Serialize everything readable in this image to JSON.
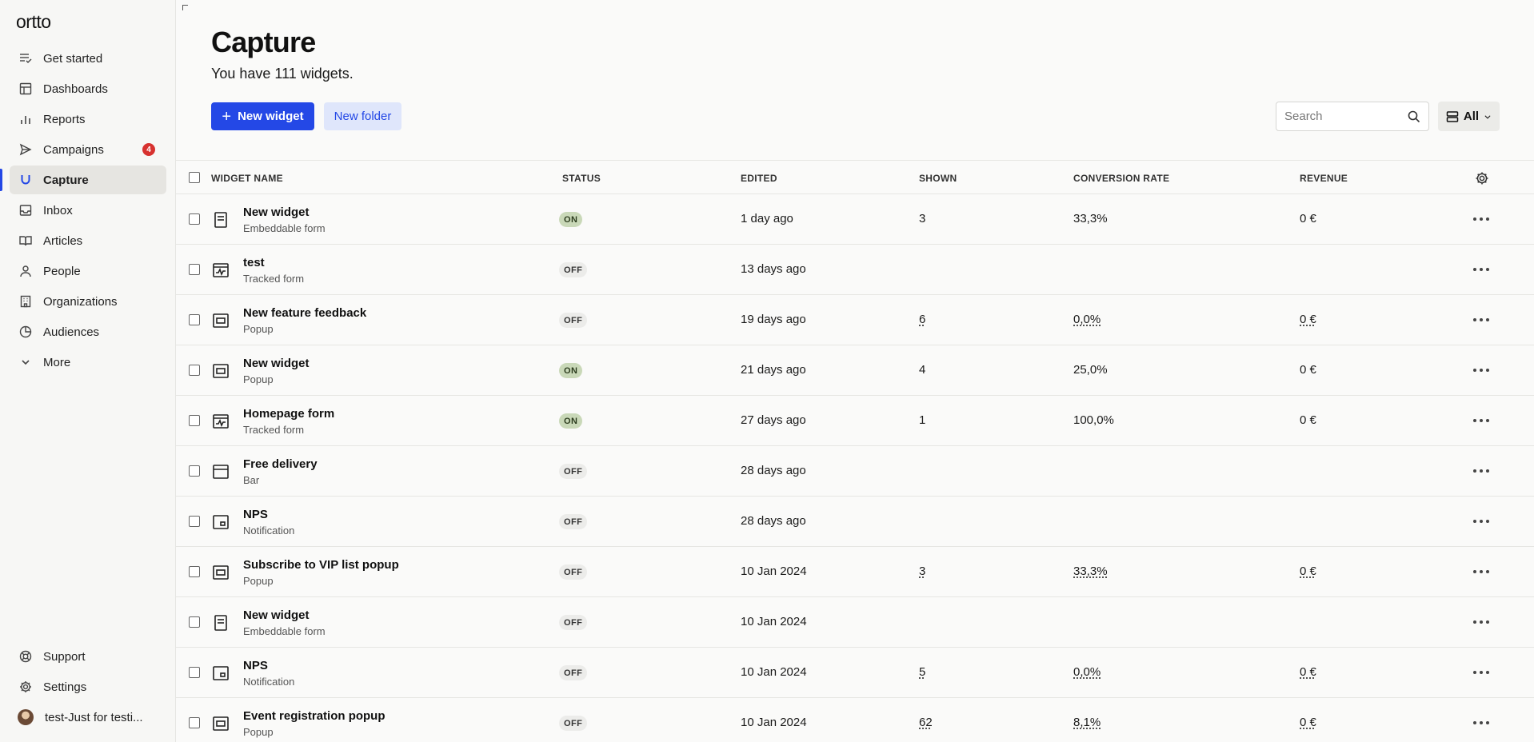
{
  "app": {
    "logo": "ortto"
  },
  "sidebar": {
    "items": [
      {
        "label": "Get started",
        "icon": "checklist-icon"
      },
      {
        "label": "Dashboards",
        "icon": "dashboard-icon"
      },
      {
        "label": "Reports",
        "icon": "bar-chart-icon"
      },
      {
        "label": "Campaigns",
        "icon": "send-icon",
        "badge": "4"
      },
      {
        "label": "Capture",
        "icon": "magnet-icon",
        "active": true
      },
      {
        "label": "Inbox",
        "icon": "inbox-icon"
      },
      {
        "label": "Articles",
        "icon": "book-icon"
      },
      {
        "label": "People",
        "icon": "person-icon"
      },
      {
        "label": "Organizations",
        "icon": "building-icon"
      },
      {
        "label": "Audiences",
        "icon": "pie-icon"
      },
      {
        "label": "More",
        "icon": "chevron-down-icon"
      }
    ],
    "bottom": [
      {
        "label": "Support",
        "icon": "lifebuoy-icon"
      },
      {
        "label": "Settings",
        "icon": "gear-icon"
      }
    ],
    "user": {
      "label": "test-Just for testi..."
    }
  },
  "header": {
    "title": "Capture",
    "subtitle": "You have 111 widgets.",
    "new_widget_label": "New widget",
    "new_folder_label": "New folder",
    "search_placeholder": "Search",
    "view_label": "All"
  },
  "table": {
    "columns": {
      "name": "WIDGET NAME",
      "status": "STATUS",
      "edited": "EDITED",
      "shown": "SHOWN",
      "conversion": "CONVERSION RATE",
      "revenue": "REVENUE"
    },
    "rows": [
      {
        "name": "New widget",
        "type": "Embeddable form",
        "icon": "form-icon",
        "status": "ON",
        "edited": "1 day ago",
        "shown": "3",
        "conversion": "33,3%",
        "revenue": "0 €",
        "underline": false
      },
      {
        "name": "test",
        "type": "Tracked form",
        "icon": "tracked-form-icon",
        "status": "OFF",
        "edited": "13 days ago",
        "shown": "",
        "conversion": "",
        "revenue": "",
        "underline": false
      },
      {
        "name": "New feature feedback",
        "type": "Popup",
        "icon": "popup-icon",
        "status": "OFF",
        "edited": "19 days ago",
        "shown": "6",
        "conversion": "0,0%",
        "revenue": "0 €",
        "underline": true
      },
      {
        "name": "New widget",
        "type": "Popup",
        "icon": "popup-icon",
        "status": "ON",
        "edited": "21 days ago",
        "shown": "4",
        "conversion": "25,0%",
        "revenue": "0 €",
        "underline": false
      },
      {
        "name": "Homepage form",
        "type": "Tracked form",
        "icon": "tracked-form-icon",
        "status": "ON",
        "edited": "27 days ago",
        "shown": "1",
        "conversion": "100,0%",
        "revenue": "0 €",
        "underline": false
      },
      {
        "name": "Free delivery",
        "type": "Bar",
        "icon": "bar-icon",
        "status": "OFF",
        "edited": "28 days ago",
        "shown": "",
        "conversion": "",
        "revenue": "",
        "underline": false
      },
      {
        "name": "NPS",
        "type": "Notification",
        "icon": "notification-icon",
        "status": "OFF",
        "edited": "28 days ago",
        "shown": "",
        "conversion": "",
        "revenue": "",
        "underline": false
      },
      {
        "name": "Subscribe to VIP list popup",
        "type": "Popup",
        "icon": "popup-icon",
        "status": "OFF",
        "edited": "10 Jan 2024",
        "shown": "3",
        "conversion": "33,3%",
        "revenue": "0 €",
        "underline": true
      },
      {
        "name": "New widget",
        "type": "Embeddable form",
        "icon": "form-icon",
        "status": "OFF",
        "edited": "10 Jan 2024",
        "shown": "",
        "conversion": "",
        "revenue": "",
        "underline": false
      },
      {
        "name": "NPS",
        "type": "Notification",
        "icon": "notification-icon",
        "status": "OFF",
        "edited": "10 Jan 2024",
        "shown": "5",
        "conversion": "0,0%",
        "revenue": "0 €",
        "underline": true
      },
      {
        "name": "Event registration popup",
        "type": "Popup",
        "icon": "popup-icon",
        "status": "OFF",
        "edited": "10 Jan 2024",
        "shown": "62",
        "conversion": "8,1%",
        "revenue": "0 €",
        "underline": true
      }
    ]
  },
  "colors": {
    "accent": "#2448e6",
    "badge": "#d7322f",
    "status_on": "#c9d8b8",
    "status_off": "#ececea"
  }
}
